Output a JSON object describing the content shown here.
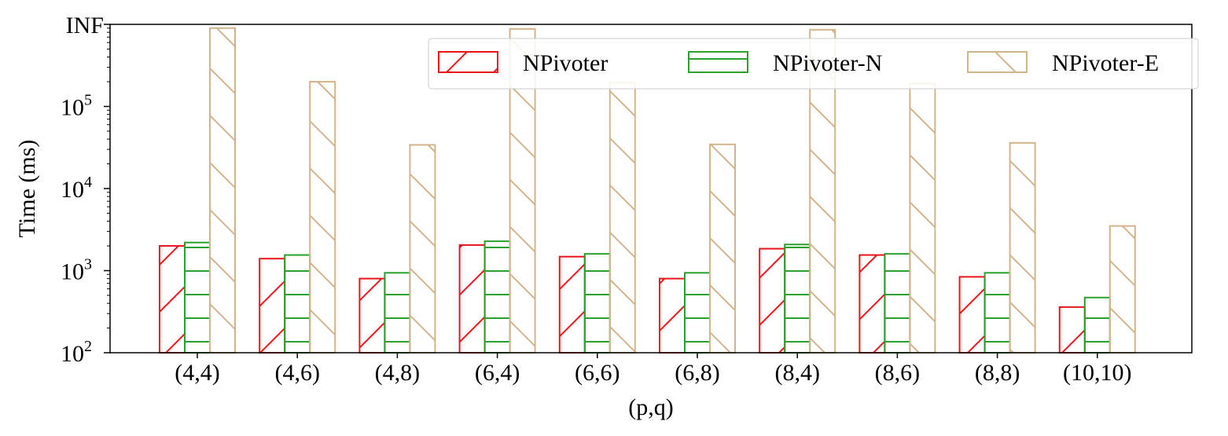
{
  "chart_data": {
    "type": "bar",
    "title": "",
    "xlabel": "(p,q)",
    "ylabel": "Time (ms)",
    "yscale": "log",
    "ylim": [
      100,
      1000000
    ],
    "inf_label": "INF",
    "yticks": [
      {
        "value": 100,
        "base": "10",
        "exp": "2"
      },
      {
        "value": 1000,
        "base": "10",
        "exp": "3"
      },
      {
        "value": 10000,
        "base": "10",
        "exp": "4"
      },
      {
        "value": 100000,
        "base": "10",
        "exp": "5"
      }
    ],
    "categories": [
      "(4,4)",
      "(4,6)",
      "(4,8)",
      "(6,4)",
      "(6,6)",
      "(6,8)",
      "(8,4)",
      "(8,6)",
      "(8,8)",
      "(10,10)"
    ],
    "series": [
      {
        "name": "NPivoter",
        "color": "#e8161b",
        "hatch": "forward",
        "values": [
          2000,
          1400,
          800,
          2050,
          1480,
          800,
          1850,
          1550,
          840,
          360
        ]
      },
      {
        "name": "NPivoter-N",
        "color": "#2ca02c",
        "hatch": "horizontal",
        "values": [
          2200,
          1550,
          940,
          2280,
          1600,
          940,
          2080,
          1600,
          940,
          470
        ]
      },
      {
        "name": "NPivoter-E",
        "color": "#d2b48c",
        "hatch": "backward",
        "values": [
          900000,
          200000,
          34000,
          880000,
          195000,
          34500,
          860000,
          190000,
          36000,
          3500
        ]
      }
    ],
    "legend_position": "top-right"
  }
}
